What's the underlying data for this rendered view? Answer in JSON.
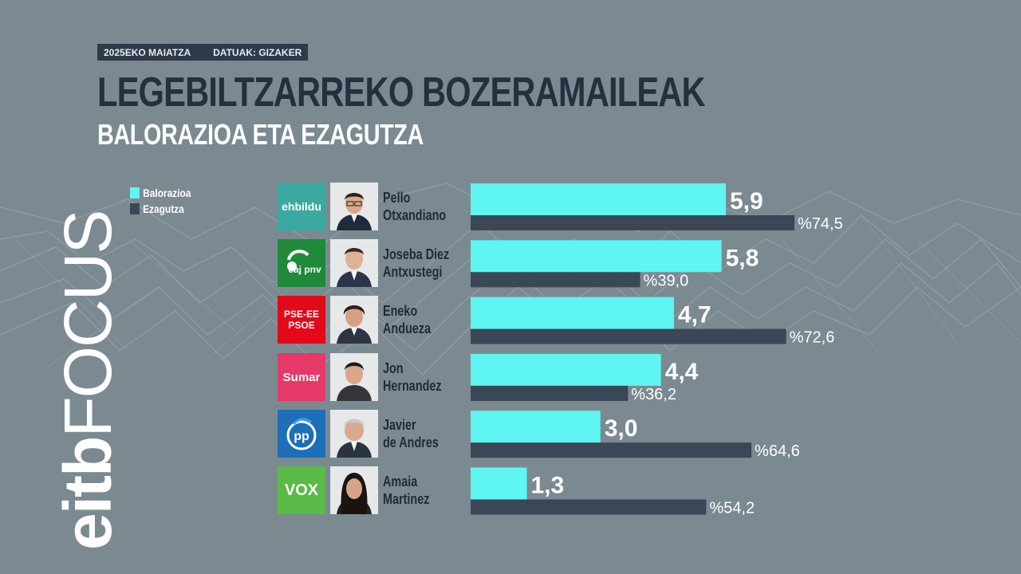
{
  "header": {
    "date": "2025EKO MAIATZA",
    "source": "DATUAK: GIZAKER",
    "title": "LEGEBILTZARREKO BOZERAMAILEAK",
    "subtitle": "BALORAZIOA ETA EZAGUTZA"
  },
  "brand": {
    "part1": "eitb",
    "part2": "FOCUS"
  },
  "colors": {
    "valuation": "#5ef5f2",
    "knowledge": "#3b4656",
    "background": "#7b8a91",
    "title": "#24303e"
  },
  "legend": [
    {
      "label": "Balorazioa",
      "color": "#5ef5f2"
    },
    {
      "label": "Ezagutza",
      "color": "#3b4656"
    }
  ],
  "rows": [
    {
      "party_logo": "ehbildu",
      "logo_color": "#3aa99f",
      "name_line1": "Pello",
      "name_line2": "Otxandiano"
    },
    {
      "party_logo": "eaj pnv",
      "logo_color": "#1e8a3a",
      "name_line1": "Joseba Diez",
      "name_line2": "Antxustegi"
    },
    {
      "party_logo": "PSE-EE PSOE",
      "logo_color": "#e3081a",
      "name_line1": "Eneko",
      "name_line2": "Andueza"
    },
    {
      "party_logo": "Sumar",
      "logo_color": "#e5396a",
      "name_line1": "Jon",
      "name_line2": "Hernandez"
    },
    {
      "party_logo": "pp",
      "logo_color": "#1d6fb8",
      "name_line1": "Javier",
      "name_line2": "de Andres"
    },
    {
      "party_logo": "VOX",
      "logo_color": "#5aba45",
      "name_line1": "Amaia",
      "name_line2": "Martinez"
    }
  ],
  "chart_data": {
    "type": "bar",
    "orientation": "horizontal",
    "categories": [
      "Pello Otxandiano",
      "Joseba Diez Antxustegi",
      "Eneko Andueza",
      "Jon Hernandez",
      "Javier de Andres",
      "Amaia Martinez"
    ],
    "series": [
      {
        "name": "Balorazioa",
        "values": [
          5.9,
          5.8,
          4.7,
          4.4,
          3.0,
          1.3
        ],
        "labels": [
          "5,9",
          "5,8",
          "4,7",
          "4,4",
          "3,0",
          "1,3"
        ]
      },
      {
        "name": "Ezagutza",
        "values": [
          74.5,
          39.0,
          72.6,
          36.2,
          64.6,
          54.2
        ],
        "labels": [
          "%74,5",
          "%39,0",
          "%72,6",
          "%36,2",
          "%64,6",
          "%54,2"
        ]
      }
    ],
    "xlim_balorazioa": [
      0,
      10
    ],
    "xlim_ezagutza": [
      0,
      100
    ],
    "grid": false,
    "legend_position": "top-left"
  }
}
